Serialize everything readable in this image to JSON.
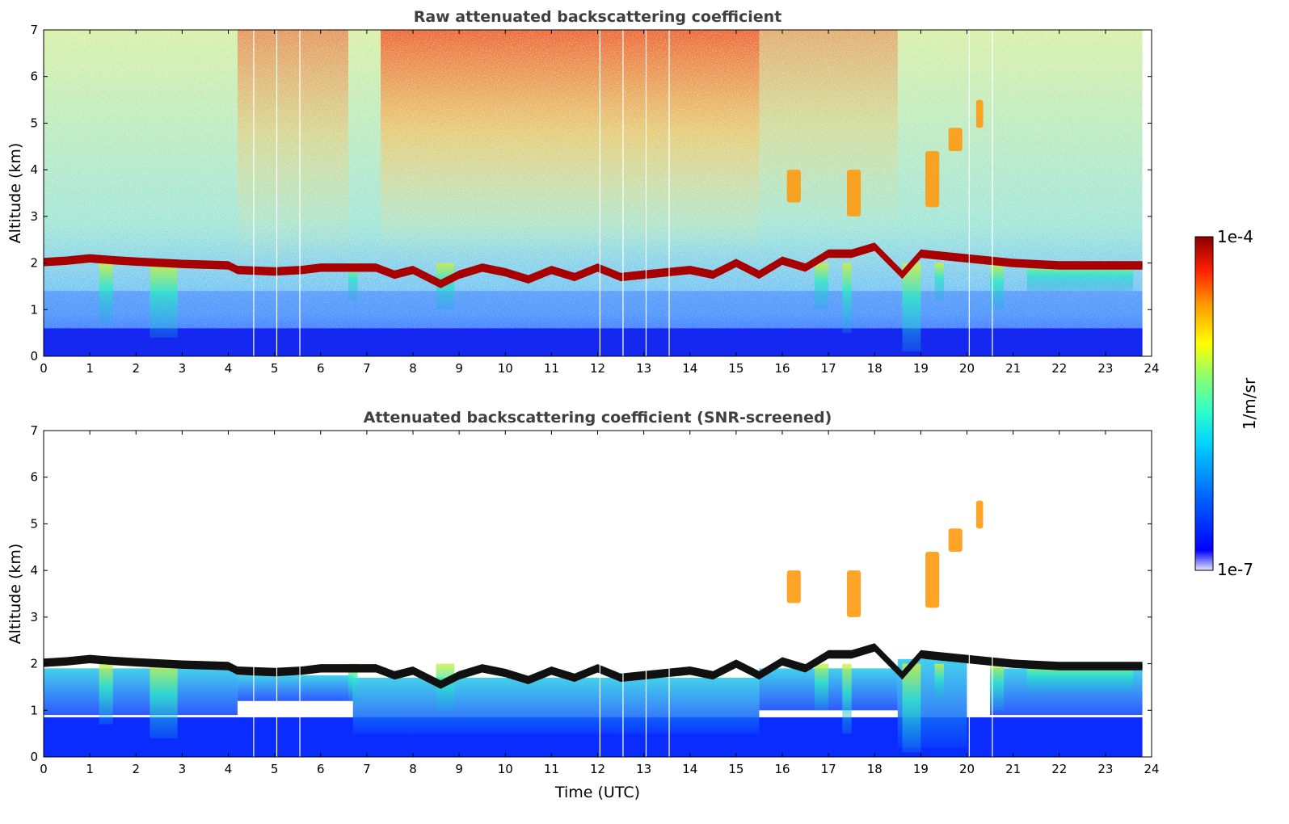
{
  "chart_data": [
    {
      "type": "heatmap",
      "title": "Raw attenuated backscattering coefficient",
      "xlabel": "",
      "ylabel": "Altitude (km)",
      "xlim": [
        0,
        24
      ],
      "ylim": [
        0,
        7
      ],
      "xticks": [
        "0",
        "1",
        "2",
        "3",
        "4",
        "5",
        "6",
        "7",
        "8",
        "9",
        "10",
        "11",
        "12",
        "13",
        "14",
        "15",
        "16",
        "17",
        "18",
        "19",
        "20",
        "21",
        "22",
        "23",
        "24"
      ],
      "yticks": [
        "0",
        "1",
        "2",
        "3",
        "4",
        "5",
        "6",
        "7"
      ],
      "data_end_hour": 23.8,
      "cloud_base_km": [
        [
          0,
          2.02
        ],
        [
          0.5,
          2.05
        ],
        [
          1,
          2.1
        ],
        [
          1.5,
          2.06
        ],
        [
          2,
          2.03
        ],
        [
          3,
          1.98
        ],
        [
          4,
          1.95
        ],
        [
          4.2,
          1.85
        ],
        [
          5,
          1.82
        ],
        [
          5.6,
          1.85
        ],
        [
          6,
          1.9
        ],
        [
          6.6,
          1.9
        ],
        [
          7.2,
          1.9
        ],
        [
          7.6,
          1.75
        ],
        [
          8,
          1.85
        ],
        [
          8.6,
          1.55
        ],
        [
          9,
          1.75
        ],
        [
          9.5,
          1.9
        ],
        [
          10,
          1.8
        ],
        [
          10.5,
          1.65
        ],
        [
          11,
          1.85
        ],
        [
          11.5,
          1.7
        ],
        [
          12,
          1.9
        ],
        [
          12.5,
          1.7
        ],
        [
          13,
          1.75
        ],
        [
          13.5,
          1.8
        ],
        [
          14,
          1.85
        ],
        [
          14.5,
          1.75
        ],
        [
          15,
          2.0
        ],
        [
          15.5,
          1.75
        ],
        [
          16,
          2.05
        ],
        [
          16.5,
          1.9
        ],
        [
          17,
          2.2
        ],
        [
          17.5,
          2.2
        ],
        [
          18,
          2.35
        ],
        [
          18.6,
          1.75
        ],
        [
          19,
          2.2
        ],
        [
          19.5,
          2.15
        ],
        [
          20,
          2.1
        ],
        [
          20.5,
          2.05
        ],
        [
          21,
          2.0
        ],
        [
          22,
          1.95
        ],
        [
          23,
          1.95
        ],
        [
          23.8,
          1.95
        ]
      ],
      "elevated_layers": [
        {
          "x": [
            16.1,
            16.4
          ],
          "y": [
            3.3,
            4.0
          ]
        },
        {
          "x": [
            17.4,
            17.7
          ],
          "y": [
            3.0,
            4.0
          ]
        },
        {
          "x": [
            19.1,
            19.4
          ],
          "y": [
            3.2,
            4.4
          ]
        },
        {
          "x": [
            19.6,
            19.9
          ],
          "y": [
            4.4,
            4.9
          ]
        },
        {
          "x": [
            20.2,
            20.35
          ],
          "y": [
            4.9,
            5.5
          ]
        }
      ],
      "data_gaps_hour": [
        4.55,
        5.05,
        5.55,
        12.05,
        12.55,
        13.05,
        13.55,
        20.05,
        20.55
      ]
    },
    {
      "type": "heatmap",
      "title": "Attenuated backscattering coefficient (SNR-screened)",
      "xlabel": "Time (UTC)",
      "ylabel": "Altitude (km)",
      "xlim": [
        0,
        24
      ],
      "ylim": [
        0,
        7
      ],
      "xticks": [
        "0",
        "1",
        "2",
        "3",
        "4",
        "5",
        "6",
        "7",
        "8",
        "9",
        "10",
        "11",
        "12",
        "13",
        "14",
        "15",
        "16",
        "17",
        "18",
        "19",
        "20",
        "21",
        "22",
        "23",
        "24"
      ],
      "yticks": [
        "0",
        "1",
        "2",
        "3",
        "4",
        "5",
        "6",
        "7"
      ]
    }
  ],
  "colorbar": {
    "label": "1/m/sr",
    "max_label": "1e-4",
    "min_label": "1e-7",
    "scale": "log",
    "range": [
      1e-07,
      0.0001
    ],
    "colormap": [
      "#e6e6f8",
      "#0000ff",
      "#0078ff",
      "#00d2ff",
      "#32ffc8",
      "#8cff6e",
      "#ffff00",
      "#ff9600",
      "#ff1e00",
      "#8b0000"
    ]
  }
}
